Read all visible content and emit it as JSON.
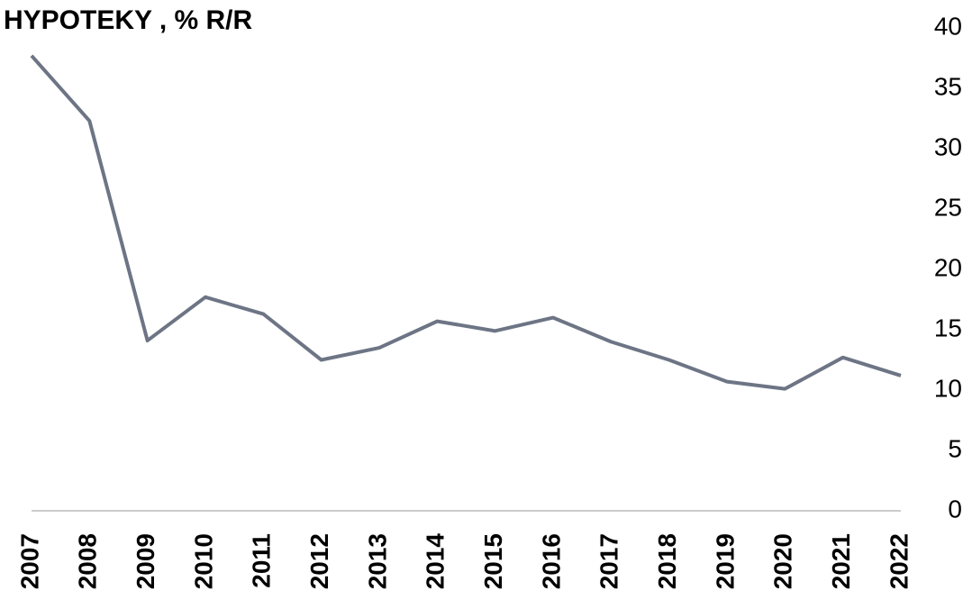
{
  "chart_data": {
    "type": "line",
    "title": "HYPOTEKY , % R/R",
    "categories": [
      "2007",
      "2008",
      "2009",
      "2010",
      "2011",
      "2012",
      "2013",
      "2014",
      "2015",
      "2016",
      "2017",
      "2018",
      "2019",
      "2020",
      "2021",
      "2022"
    ],
    "series": [
      {
        "color": "#6d7585",
        "values": [
          37.7,
          32.3,
          14.1,
          17.7,
          16.3,
          12.5,
          13.5,
          15.7,
          14.9,
          16.0,
          14.0,
          12.5,
          10.7,
          10.1,
          12.7,
          11.2
        ]
      }
    ],
    "ylim": [
      0,
      40
    ],
    "yticks": [
      0,
      5,
      10,
      15,
      20,
      25,
      30,
      35,
      40
    ],
    "y_axis_side": "right",
    "grid": false
  }
}
